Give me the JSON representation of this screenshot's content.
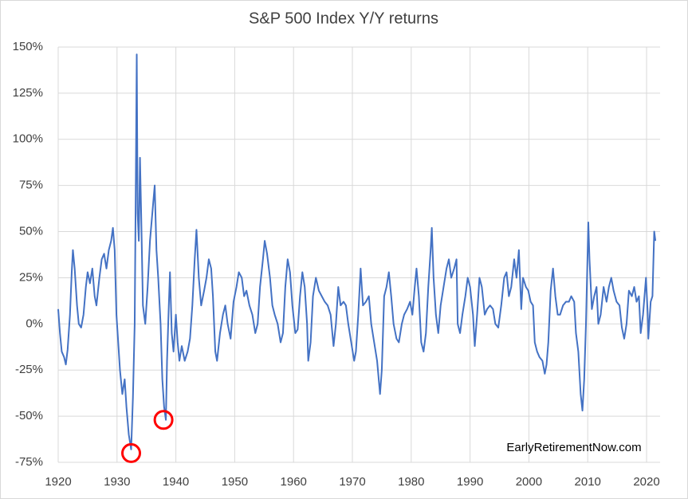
{
  "chart_data": {
    "type": "line",
    "title": "S&P 500 Index Y/Y returns",
    "annotation": "EarlyRetirementNow.com",
    "xlim": [
      1920,
      2022.3
    ],
    "xticks": [
      1920,
      1930,
      1940,
      1950,
      1960,
      1970,
      1980,
      1990,
      2000,
      2010,
      2020
    ],
    "ylim": [
      -75,
      150
    ],
    "yticks": [
      {
        "value": -75,
        "label": "-75%"
      },
      {
        "value": -50,
        "label": "-50%"
      },
      {
        "value": -25,
        "label": "-25%"
      },
      {
        "value": 0,
        "label": "0%"
      },
      {
        "value": 25,
        "label": "25%"
      },
      {
        "value": 50,
        "label": "50%"
      },
      {
        "value": 75,
        "label": "75%"
      },
      {
        "value": 100,
        "label": "100%"
      },
      {
        "value": 125,
        "label": "125%"
      },
      {
        "value": 150,
        "label": "150%"
      }
    ],
    "grid": true,
    "highlight_color": "#ff0000",
    "highlights": [
      {
        "x": 1932.4,
        "y": -70
      },
      {
        "x": 1937.9,
        "y": -52
      }
    ],
    "series": [
      {
        "color": "#4472c4",
        "x": [
          1920.0,
          1920.3,
          1920.6,
          1921.0,
          1921.3,
          1921.6,
          1922.0,
          1922.3,
          1922.5,
          1922.8,
          1923.2,
          1923.5,
          1923.9,
          1924.3,
          1924.7,
          1925.0,
          1925.4,
          1925.8,
          1926.2,
          1926.5,
          1927.0,
          1927.4,
          1927.8,
          1928.2,
          1928.6,
          1929.0,
          1929.3,
          1929.6,
          1929.9,
          1930.2,
          1930.5,
          1930.9,
          1931.3,
          1931.6,
          1932.0,
          1932.4,
          1932.7,
          1933.0,
          1933.2,
          1933.35,
          1933.5,
          1933.7,
          1933.9,
          1934.1,
          1934.4,
          1934.8,
          1935.2,
          1935.6,
          1936.0,
          1936.4,
          1936.7,
          1937.0,
          1937.4,
          1937.7,
          1938.0,
          1938.3,
          1938.5,
          1938.8,
          1939.0,
          1939.3,
          1939.6,
          1940.0,
          1940.3,
          1940.6,
          1941.0,
          1941.5,
          1942.0,
          1942.4,
          1942.8,
          1943.2,
          1943.5,
          1943.9,
          1944.3,
          1944.8,
          1945.2,
          1945.6,
          1946.0,
          1946.3,
          1946.7,
          1947.0,
          1947.5,
          1948.0,
          1948.4,
          1948.8,
          1949.3,
          1949.8,
          1950.3,
          1950.7,
          1951.2,
          1951.6,
          1952.0,
          1952.5,
          1953.0,
          1953.5,
          1953.9,
          1954.3,
          1954.8,
          1955.1,
          1955.5,
          1956.0,
          1956.4,
          1956.8,
          1957.3,
          1957.8,
          1958.2,
          1958.6,
          1959.0,
          1959.4,
          1959.8,
          1960.3,
          1960.7,
          1961.1,
          1961.5,
          1961.9,
          1962.3,
          1962.5,
          1962.9,
          1963.3,
          1963.8,
          1964.3,
          1964.8,
          1965.3,
          1965.8,
          1966.3,
          1966.8,
          1967.2,
          1967.6,
          1968.0,
          1968.5,
          1968.9,
          1969.3,
          1969.8,
          1970.3,
          1970.6,
          1971.0,
          1971.4,
          1971.8,
          1972.3,
          1972.8,
          1973.2,
          1973.7,
          1974.2,
          1974.7,
          1975.0,
          1975.4,
          1975.8,
          1976.2,
          1976.6,
          1977.0,
          1977.5,
          1977.9,
          1978.4,
          1978.8,
          1979.3,
          1979.8,
          1980.2,
          1980.6,
          1980.9,
          1981.3,
          1981.7,
          1982.1,
          1982.5,
          1982.9,
          1983.3,
          1983.5,
          1983.8,
          1984.2,
          1984.6,
          1985.0,
          1985.5,
          1986.0,
          1986.4,
          1986.8,
          1987.3,
          1987.7,
          1987.9,
          1988.3,
          1988.7,
          1989.2,
          1989.6,
          1990.0,
          1990.5,
          1990.8,
          1991.2,
          1991.6,
          1992.0,
          1992.5,
          1992.9,
          1993.4,
          1993.9,
          1994.3,
          1994.8,
          1995.3,
          1995.8,
          1996.2,
          1996.6,
          1997.0,
          1997.5,
          1997.9,
          1998.3,
          1998.7,
          1999.0,
          1999.5,
          1999.9,
          2000.3,
          2000.7,
          2001.0,
          2001.4,
          2001.8,
          2002.3,
          2002.7,
          2003.0,
          2003.3,
          2003.7,
          2004.1,
          2004.5,
          2004.9,
          2005.3,
          2005.8,
          2006.3,
          2006.8,
          2007.2,
          2007.7,
          2008.0,
          2008.4,
          2008.8,
          2009.1,
          2009.4,
          2009.7,
          2010.1,
          2010.3,
          2010.7,
          2011.1,
          2011.5,
          2011.8,
          2012.2,
          2012.7,
          2013.2,
          2013.6,
          2014.0,
          2014.4,
          2014.9,
          2015.4,
          2015.8,
          2016.2,
          2016.6,
          2017.0,
          2017.5,
          2017.9,
          2018.3,
          2018.7,
          2019.0,
          2019.4,
          2019.9,
          2020.2,
          2020.3,
          2020.7,
          2021.0,
          2021.3,
          2021.5
        ],
        "values": [
          8,
          -5,
          -15,
          -18,
          -22,
          -14,
          5,
          28,
          40,
          30,
          10,
          0,
          -2,
          5,
          20,
          28,
          22,
          30,
          15,
          10,
          25,
          35,
          38,
          30,
          40,
          45,
          52,
          40,
          5,
          -10,
          -25,
          -38,
          -30,
          -45,
          -60,
          -68,
          -40,
          0,
          80,
          146,
          60,
          45,
          90,
          60,
          10,
          0,
          20,
          45,
          60,
          75,
          40,
          25,
          0,
          -30,
          -45,
          -52,
          -20,
          10,
          28,
          -5,
          -15,
          5,
          -10,
          -20,
          -12,
          -20,
          -15,
          -8,
          10,
          35,
          51,
          25,
          10,
          18,
          25,
          35,
          30,
          15,
          -15,
          -20,
          -5,
          5,
          10,
          0,
          -8,
          12,
          20,
          28,
          25,
          15,
          18,
          10,
          5,
          -5,
          0,
          20,
          35,
          45,
          38,
          25,
          10,
          5,
          0,
          -10,
          -5,
          20,
          35,
          28,
          10,
          -5,
          -3,
          15,
          28,
          20,
          0,
          -20,
          -10,
          15,
          25,
          18,
          15,
          12,
          10,
          5,
          -12,
          0,
          20,
          10,
          12,
          10,
          0,
          -10,
          -20,
          -15,
          5,
          30,
          10,
          12,
          15,
          0,
          -10,
          -20,
          -38,
          -25,
          15,
          20,
          28,
          15,
          0,
          -8,
          -10,
          0,
          5,
          8,
          12,
          5,
          20,
          30,
          15,
          -10,
          -15,
          -5,
          20,
          40,
          52,
          25,
          5,
          -5,
          10,
          20,
          30,
          35,
          25,
          30,
          35,
          0,
          -5,
          5,
          15,
          25,
          20,
          5,
          -12,
          5,
          25,
          20,
          5,
          8,
          10,
          8,
          0,
          -2,
          10,
          25,
          28,
          15,
          20,
          35,
          25,
          40,
          8,
          25,
          20,
          18,
          12,
          10,
          -10,
          -15,
          -18,
          -20,
          -27,
          -22,
          -10,
          18,
          30,
          15,
          5,
          5,
          10,
          12,
          12,
          15,
          12,
          -5,
          -15,
          -38,
          -47,
          -30,
          0,
          55,
          35,
          8,
          15,
          20,
          0,
          5,
          20,
          12,
          20,
          25,
          18,
          12,
          10,
          -2,
          -8,
          0,
          18,
          15,
          20,
          12,
          15,
          -5,
          5,
          25,
          5,
          -8,
          12,
          15,
          50,
          45
        ]
      }
    ]
  }
}
